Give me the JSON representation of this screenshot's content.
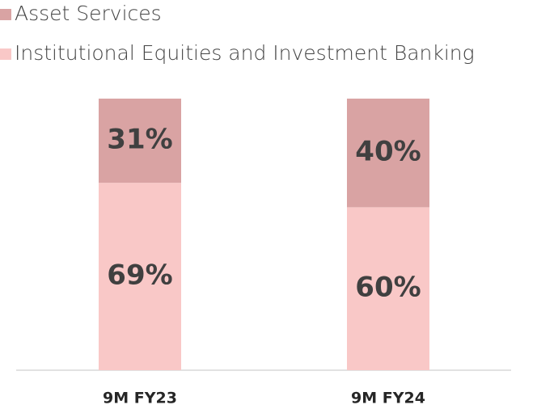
{
  "chart_data": {
    "type": "stacked_bar",
    "categories": [
      "9M FY23",
      "9M FY24"
    ],
    "series": [
      {
        "name": "Asset Services",
        "color": "#d9a3a3",
        "values": [
          31,
          40
        ],
        "value_labels": [
          "31%",
          "40%"
        ]
      },
      {
        "name": "Institutional Equities and Investment Banking",
        "color": "#f9c8c7",
        "values": [
          69,
          60
        ],
        "value_labels": [
          "69%",
          "60%"
        ]
      }
    ],
    "legend": "top-left"
  }
}
